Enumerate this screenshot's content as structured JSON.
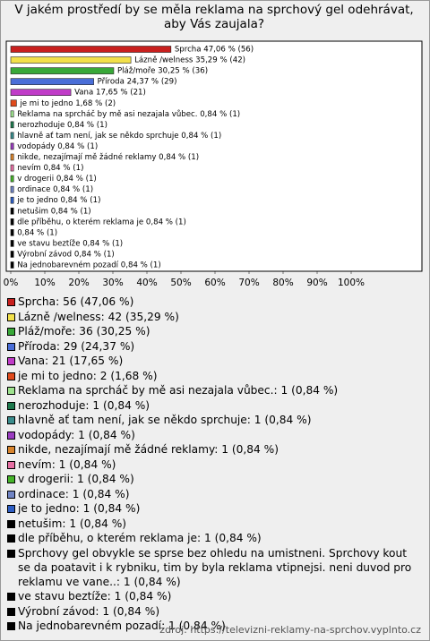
{
  "chart_data": {
    "type": "bar",
    "orientation": "horizontal",
    "title": "V jakém prostředí by se měla reklama na sprchový gel odehrávat, aby Vás zaujala?",
    "values": [
      47.06,
      35.29,
      30.25,
      24.37,
      17.65,
      1.68,
      0.84,
      0.84,
      0.84,
      0.84,
      0.84,
      0.84,
      0.84,
      0.84,
      0.84,
      0.84,
      0.84,
      0.84,
      0.84,
      0.84,
      0.84
    ],
    "value_labels": [
      "Sprcha 47,06 % (56)",
      "Lázně /welness 35,29 % (42)",
      "Pláž/moře 30,25 % (36)",
      "Příroda 24,37 % (29)",
      "Vana 17,65 % (21)",
      "je mi to jedno 1,68 % (2)",
      "Reklama na sprcháč by mě asi nezajala vůbec. 0,84 % (1)",
      "nerozhoduje 0,84 % (1)",
      "hlavně ať tam není, jak se někdo sprchuje 0,84 % (1)",
      "vodopády 0,84 % (1)",
      "nikde, nezajímají mě žádné reklamy 0,84 % (1)",
      "nevím 0,84 % (1)",
      "v drogerii 0,84 % (1)",
      "ordinace 0,84 % (1)",
      "je to jedno 0,84 % (1)",
      "netušim 0,84 % (1)",
      "dle příběhu, o kterém reklama je 0,84 % (1)",
      "0,84 % (1)",
      "ve stavu beztíže 0,84 % (1)",
      "Výrobní závod 0,84 % (1)",
      "Na jednobarevném pozadí 0,84 % (1)"
    ],
    "colors": [
      "#c8201e",
      "#f2e04a",
      "#38a838",
      "#4a6ed8",
      "#c03cc8",
      "#e04a1c",
      "#9ee28e",
      "#1e7a4e",
      "#3a8c8c",
      "#9a3cc0",
      "#d8842e",
      "#e66ea2",
      "#46b42a",
      "#7084c4",
      "#2e5ec4",
      "#000000",
      "#000000",
      "#000000",
      "#000000",
      "#000000",
      "#000000"
    ],
    "legend_labels": [
      "Sprcha: 56 (47,06 %)",
      "Lázně /welness: 42 (35,29 %)",
      "Pláž/moře: 36 (30,25 %)",
      "Příroda: 29 (24,37 %)",
      "Vana: 21 (17,65 %)",
      "je mi to jedno: 2 (1,68 %)",
      "Reklama na sprcháč by mě asi nezajala vůbec.: 1 (0,84 %)",
      "nerozhoduje: 1 (0,84 %)",
      "hlavně ať tam není, jak se někdo sprchuje: 1 (0,84 %)",
      "vodopády: 1 (0,84 %)",
      "nikde, nezajímají mě žádné reklamy: 1 (0,84 %)",
      "nevím: 1 (0,84 %)",
      "v drogerii: 1 (0,84 %)",
      "ordinace: 1 (0,84 %)",
      "je to jedno: 1 (0,84 %)",
      "netušim: 1 (0,84 %)",
      "dle příběhu, o kterém reklama je: 1 (0,84 %)",
      "Sprchovy gel obvykle se sprse bez ohledu na umistneni. Sprchovy kout se da poatavit i k rybniku, tim by byla reklama vtipnejsi. neni duvod pro reklamu ve vane..: 1 (0,84 %)",
      "ve stavu beztíže: 1 (0,84 %)",
      "Výrobní závod: 1 (0,84 %)",
      "Na jednobarevném pozadí: 1 (0,84 %)"
    ],
    "xlim": [
      0,
      100
    ],
    "xticks": [
      {
        "value": 0,
        "label": "0%"
      },
      {
        "value": 10,
        "label": "10%"
      },
      {
        "value": 20,
        "label": "20%"
      },
      {
        "value": 30,
        "label": "30%"
      },
      {
        "value": 40,
        "label": "40%"
      },
      {
        "value": 50,
        "label": "50%"
      },
      {
        "value": 60,
        "label": "60%"
      },
      {
        "value": 70,
        "label": "70%"
      },
      {
        "value": 80,
        "label": "80%"
      },
      {
        "value": 90,
        "label": "90%"
      },
      {
        "value": 100,
        "label": "100%"
      }
    ],
    "source": "zdroj: https://televizni-reklamy-na-sprchov.vyplnto.cz"
  }
}
